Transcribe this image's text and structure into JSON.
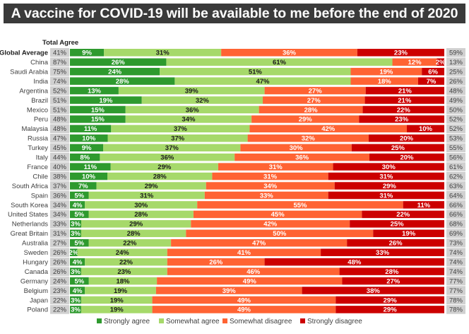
{
  "chart_data": {
    "type": "bar",
    "orientation": "horizontal",
    "stacked": true,
    "title": "A vaccine for COVID-19 will be available to me before the end of 2020",
    "left_column_header": "Total Agree",
    "xlabel": "",
    "ylabel": "",
    "xlim": [
      0,
      100
    ],
    "grid": false,
    "legend_position": "bottom",
    "categories": [
      "Global Average",
      "China",
      "Saudi Arabia",
      "India",
      "Argentina",
      "Brazil",
      "Mexico",
      "Peru",
      "Malaysia",
      "Russia",
      "Turkey",
      "Italy",
      "France",
      "Chile",
      "South Africa",
      "Spain",
      "South Korea",
      "United States",
      "Netherlands",
      "Great Britain",
      "Australia",
      "Sweden",
      "Hungary",
      "Canada",
      "Germany",
      "Belgium",
      "Japan",
      "Poland"
    ],
    "total_agree": [
      "41%",
      "87%",
      "75%",
      "74%",
      "52%",
      "51%",
      "51%",
      "48%",
      "48%",
      "47%",
      "45%",
      "44%",
      "40%",
      "38%",
      "37%",
      "36%",
      "34%",
      "34%",
      "33%",
      "31%",
      "27%",
      "26%",
      "26%",
      "26%",
      "24%",
      "23%",
      "22%",
      "22%"
    ],
    "total_disagree": [
      "59%",
      "13%",
      "25%",
      "26%",
      "48%",
      "49%",
      "50%",
      "52%",
      "52%",
      "53%",
      "55%",
      "56%",
      "61%",
      "62%",
      "63%",
      "64%",
      "66%",
      "66%",
      "68%",
      "69%",
      "73%",
      "74%",
      "74%",
      "74%",
      "77%",
      "77%",
      "78%",
      "78%"
    ],
    "series": [
      {
        "name": "Strongly agree",
        "color": "#2e9a2e",
        "label_color": "#ffffff",
        "values": [
          9,
          26,
          24,
          28,
          13,
          19,
          15,
          15,
          11,
          10,
          9,
          8,
          11,
          10,
          7,
          5,
          4,
          5,
          3,
          3,
          5,
          2,
          4,
          3,
          5,
          4,
          3,
          3
        ]
      },
      {
        "name": "Somewhat agree",
        "color": "#a6d96a",
        "label_color": "#1a1a1a",
        "values": [
          31,
          61,
          51,
          47,
          39,
          32,
          36,
          34,
          37,
          37,
          37,
          36,
          29,
          28,
          29,
          31,
          30,
          28,
          29,
          28,
          22,
          24,
          22,
          23,
          18,
          19,
          19,
          19
        ]
      },
      {
        "name": "Somewhat disagree",
        "color": "#ff6333",
        "label_color": "#ffffff",
        "values": [
          36,
          12,
          19,
          18,
          27,
          27,
          28,
          29,
          42,
          32,
          30,
          36,
          31,
          31,
          34,
          33,
          55,
          45,
          42,
          50,
          47,
          41,
          26,
          46,
          49,
          39,
          49,
          49
        ]
      },
      {
        "name": "Strongly disagree",
        "color": "#cc0000",
        "label_color": "#ffffff",
        "values": [
          23,
          2,
          6,
          7,
          21,
          21,
          22,
          23,
          10,
          20,
          25,
          20,
          30,
          31,
          29,
          31,
          11,
          22,
          25,
          19,
          26,
          33,
          48,
          28,
          27,
          38,
          29,
          29
        ]
      }
    ],
    "value_suffix": "%"
  },
  "colors": {
    "title_bg": "#3a3a3a",
    "title_text": "#ffffff",
    "total_box": "#d0d0d0"
  }
}
